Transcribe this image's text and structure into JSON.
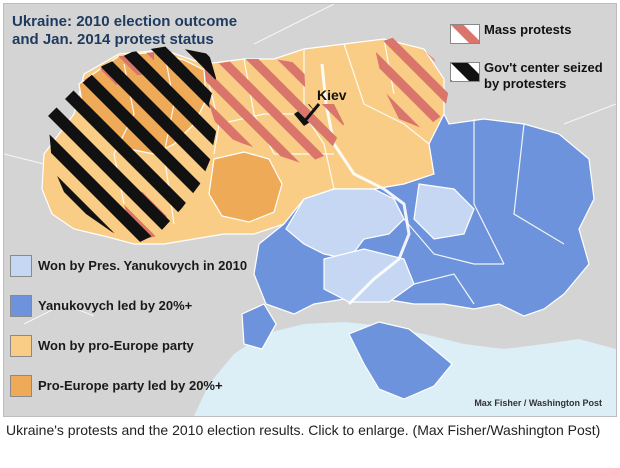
{
  "map": {
    "title_line1": "Ukraine: 2010 election outcome",
    "title_line2": "and Jan. 2014 protest status",
    "city_label": "Kiev",
    "credit": "Max Fisher / Washington Post",
    "protest_legend": [
      {
        "label_line1": "Mass protests",
        "label_line2": "",
        "pattern": "mass-protests-stripes"
      },
      {
        "label_line1": "Gov't center seized",
        "label_line2": "by protesters",
        "pattern": "seized-stripes"
      }
    ],
    "election_legend": [
      {
        "label": "Won by Pres. Yanukovych in 2010",
        "color": "#c6d7f3"
      },
      {
        "label": "Yanukovych led by 20%+",
        "color": "#6d93dc"
      },
      {
        "label": "Won by pro-Europe party",
        "color": "#f9cd85"
      },
      {
        "label": "Pro-Europe party led by 20%+",
        "color": "#eeaa56"
      }
    ],
    "colors": {
      "background_land": "#d4d4d4",
      "sea": "#dceef6",
      "yanukovych_won": "#c6d7f3",
      "yanukovych_led": "#6d93dc",
      "pro_europe_won": "#f9cd85",
      "pro_europe_led": "#eeaa56",
      "protest_stripe": "#d9756b",
      "seized_stripe": "#111111",
      "title": "#1f3a5f"
    }
  },
  "caption": "Ukraine's protests and the 2010 election results. Click to enlarge. (Max Fisher/Washington Post)"
}
